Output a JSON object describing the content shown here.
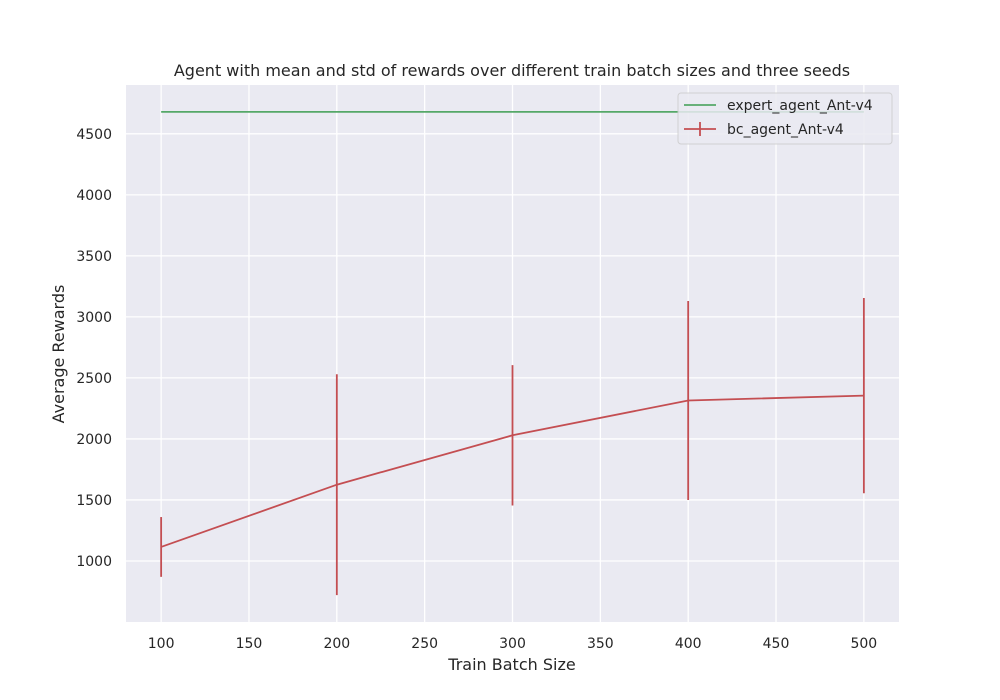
{
  "chart_data": {
    "type": "line",
    "title": "Agent with mean and std of rewards over different train batch sizes and three seeds",
    "xlabel": "Train Batch Size",
    "ylabel": "Average Rewards",
    "xlim": [
      80,
      520
    ],
    "ylim": [
      500,
      4900
    ],
    "xticks": [
      100,
      150,
      200,
      250,
      300,
      350,
      400,
      450,
      500
    ],
    "yticks": [
      1000,
      1500,
      2000,
      2500,
      3000,
      3500,
      4000,
      4500
    ],
    "grid": true,
    "legend_position": "top-right",
    "series": [
      {
        "name": "expert_agent_Ant-v4",
        "color": "#55a868",
        "x": [
          100,
          500
        ],
        "y": [
          4680,
          4680
        ]
      },
      {
        "name": "bc_agent_Ant-v4",
        "color": "#c44e52",
        "x": [
          100,
          200,
          300,
          400,
          500
        ],
        "y": [
          1115,
          1625,
          2030,
          2315,
          2355
        ],
        "yerr": [
          245,
          905,
          575,
          815,
          800
        ]
      }
    ]
  }
}
